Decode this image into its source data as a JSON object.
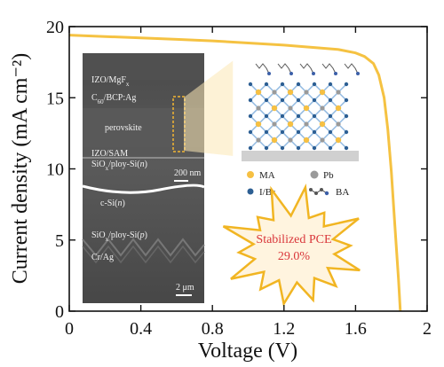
{
  "chart_data": {
    "type": "line",
    "xlabel": "Voltage (V)",
    "ylabel": "Current density (mA cm⁻²)",
    "xlim": [
      0,
      2
    ],
    "ylim": [
      0,
      20
    ],
    "xticks": [
      "0",
      "0.4",
      "0.8",
      "1.2",
      "1.6",
      "2"
    ],
    "yticks": [
      "0",
      "5",
      "10",
      "15",
      "20"
    ],
    "series": [
      {
        "x": [
          0,
          0.2,
          0.4,
          0.6,
          0.8,
          1.0,
          1.2,
          1.4,
          1.5,
          1.6,
          1.65,
          1.7,
          1.73,
          1.76,
          1.78,
          1.8,
          1.82,
          1.84,
          1.85
        ],
        "y": [
          19.4,
          19.3,
          19.2,
          19.1,
          19.0,
          18.85,
          18.7,
          18.5,
          18.4,
          18.15,
          17.9,
          17.4,
          16.6,
          15.0,
          12.8,
          9.8,
          6.0,
          2.2,
          0
        ],
        "color": "#f5c242"
      }
    ],
    "grid": false
  },
  "inset_sem": {
    "layer_labels": [
      "IZO/MgF",
      "C",
      "/BCP:Ag",
      "perovskite",
      "IZO/SAM",
      "SiO",
      "/ploy-Si(",
      "n",
      ")",
      "c-Si(",
      "n",
      ")",
      "SiO",
      "/ploy-Si(",
      "p",
      ")",
      "Cr/Ag"
    ],
    "sub_x": "x",
    "sub_60": "60",
    "scale_top": "200 nm",
    "scale_bottom": "2 μm"
  },
  "inset_structure": {
    "legend": {
      "ma": "MA",
      "pb": "Pb",
      "ibr": "I/Br",
      "ba": "BA"
    }
  },
  "burst": {
    "line1": "Stabilized PCE",
    "line2": "29.0%"
  },
  "colors": {
    "curve": "#f5c242",
    "burst_fill": "#fff4df",
    "burst_stroke": "#f1b522",
    "burst_text": "#d9363a",
    "sem_bg": "#555555",
    "ma": "#f6c043",
    "pb": "#9a9a9a",
    "ibr": "#2d5f93",
    "octahedron": "#91b9e1"
  }
}
